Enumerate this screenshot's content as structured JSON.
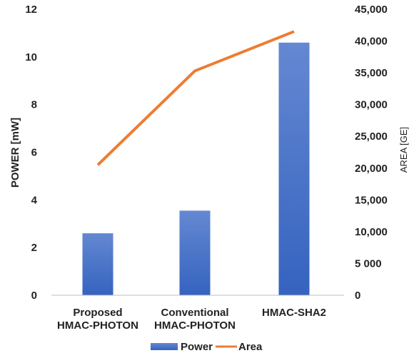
{
  "chart_data": {
    "type": "bar",
    "categories": [
      [
        "Proposed",
        "HMAC-PHOTON"
      ],
      [
        "Conventional",
        "HMAC-PHOTON"
      ],
      [
        "HMAC-SHA2"
      ]
    ],
    "series": [
      {
        "name": "Power",
        "type": "bar",
        "axis": "left",
        "values": [
          2.6,
          3.55,
          10.6
        ],
        "color": "#4a72c4"
      },
      {
        "name": "Area",
        "type": "line",
        "axis": "right",
        "values": [
          20500,
          35300,
          41500
        ],
        "color": "#ed7d31"
      }
    ],
    "ylabel": "POWER [mW]",
    "ylabel_right": "AREA [GE]",
    "ylim": [
      0,
      12
    ],
    "ylim_right": [
      0,
      45000
    ],
    "yticks": [
      "0",
      "2",
      "4",
      "6",
      "8",
      "10",
      "12"
    ],
    "yticks_right": [
      "0",
      "5 000",
      "10,000",
      "15,000",
      "20,000",
      "25,000",
      "30,000",
      "35,000",
      "40,000",
      "45,000"
    ],
    "grid": false,
    "legend_position": "bottom"
  }
}
